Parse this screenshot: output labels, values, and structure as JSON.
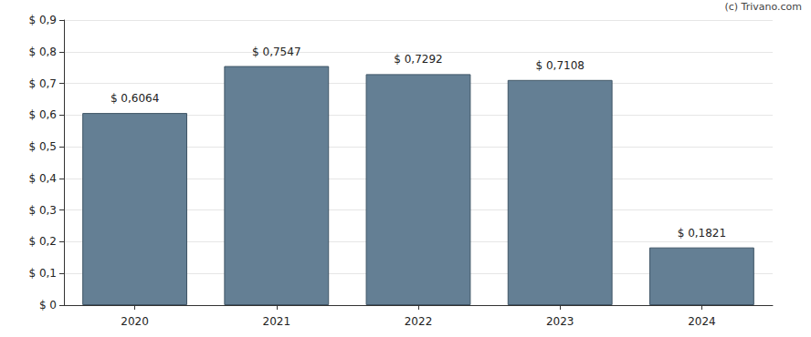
{
  "chart_data": {
    "type": "bar",
    "categories": [
      "2020",
      "2021",
      "2022",
      "2023",
      "2024"
    ],
    "values": [
      0.6064,
      0.7547,
      0.7292,
      0.7108,
      0.1821
    ],
    "value_labels": [
      "$ 0,6064",
      "$ 0,7547",
      "$ 0,7292",
      "$ 0,7108",
      "$ 0,1821"
    ],
    "color": "#647f94",
    "ylim": [
      0,
      0.9
    ],
    "yticks": [
      {
        "value": 0,
        "label": "$ 0"
      },
      {
        "value": 0.1,
        "label": "$ 0,1"
      },
      {
        "value": 0.2,
        "label": "$ 0,2"
      },
      {
        "value": 0.3,
        "label": "$ 0,3"
      },
      {
        "value": 0.4,
        "label": "$ 0,4"
      },
      {
        "value": 0.5,
        "label": "$ 0,5"
      },
      {
        "value": 0.6,
        "label": "$ 0,6"
      },
      {
        "value": 0.7,
        "label": "$ 0,7"
      },
      {
        "value": 0.8,
        "label": "$ 0,8"
      },
      {
        "value": 0.9,
        "label": "$ 0,9"
      }
    ],
    "grid": true,
    "data_labels": true,
    "annotations": [
      "(c) Trivano.com"
    ]
  }
}
